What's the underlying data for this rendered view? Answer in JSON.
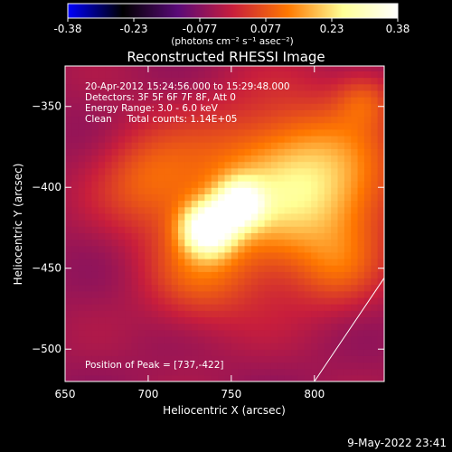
{
  "chart_data": {
    "type": "heatmap",
    "title": "Reconstructed RHESSI Image",
    "xlabel": "Heliocentric X (arcsec)",
    "ylabel": "Heliocentric Y (arcsec)",
    "xlim": [
      650,
      842
    ],
    "ylim": [
      -520,
      -325
    ],
    "x_ticks": [
      650,
      700,
      750,
      800
    ],
    "y_ticks": [
      -350,
      -400,
      -450,
      -500
    ],
    "info_lines": [
      "20-Apr-2012 15:24:56.000 to 15:29:48.000",
      "Detectors: 3F 5F 6F 7F 8F, Att 0",
      "Energy Range: 3.0 - 6.0 keV",
      "Clean     Total counts: 1.14E+05"
    ],
    "peak_label": "Position of Peak = [737,-422]",
    "peak": [
      737,
      -422
    ],
    "colorbar": {
      "min": -0.38,
      "max": 0.38,
      "ticks": [
        "-0.38",
        "-0.23",
        "-0.077",
        "0.077",
        "0.23",
        "0.38"
      ],
      "units_label": "(photons cm⁻² s⁻¹ asec⁻²)",
      "colormap": [
        "#0000ff",
        "#000000",
        "#5a0a78",
        "#c81e3c",
        "#ff7800",
        "#ffff96",
        "#ffffff"
      ]
    },
    "sources": [
      {
        "x": 736,
        "y": -425,
        "amplitude": 0.38,
        "sigma": 11
      },
      {
        "x": 755,
        "y": -410,
        "amplitude": 0.3,
        "sigma": 10
      },
      {
        "x": 770,
        "y": -405,
        "amplitude": 0.2,
        "sigma": 38
      },
      {
        "x": 810,
        "y": -395,
        "amplitude": 0.16,
        "sigma": 30
      },
      {
        "x": 700,
        "y": -395,
        "amplitude": 0.12,
        "sigma": 22
      },
      {
        "x": 730,
        "y": -455,
        "amplitude": 0.1,
        "sigma": 22
      },
      {
        "x": 815,
        "y": -450,
        "amplitude": 0.08,
        "sigma": 18
      },
      {
        "x": 830,
        "y": -345,
        "amplitude": 0.1,
        "sigma": 12
      }
    ],
    "limb_line": [
      [
        800,
        -520
      ],
      [
        842,
        -456
      ]
    ]
  },
  "footer_date": "9-May-2022 23:41"
}
